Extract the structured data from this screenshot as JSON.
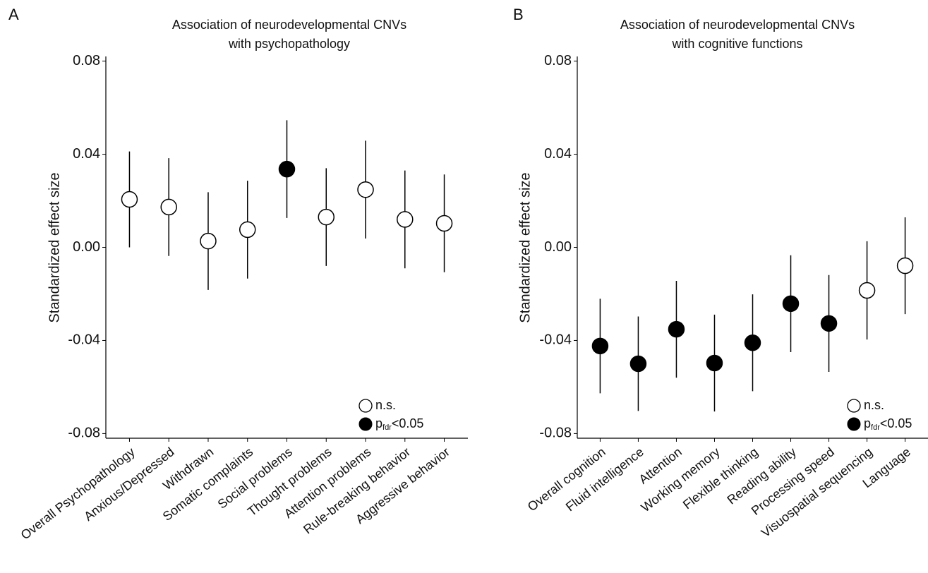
{
  "chart_data": [
    {
      "type": "errorbar",
      "panel": "A",
      "title": [
        "Association of neurodevelopmental CNVs",
        "with psychopathology"
      ],
      "y_label": "Standardized effect size",
      "categories": [
        "Overall Psychopathology",
        "Anxious/Depressed",
        "Withdrawn",
        "Somatic complaints",
        "Social problems",
        "Thought problems",
        "Attention problems",
        "Rule-breaking behavior",
        "Aggressive behavior"
      ],
      "values": [
        0.0206,
        0.0173,
        0.0027,
        0.0076,
        0.0336,
        0.013,
        0.0248,
        0.012,
        0.0103
      ],
      "errors": [
        0.0206,
        0.021,
        0.021,
        0.021,
        0.021,
        0.021,
        0.021,
        0.021,
        0.021
      ],
      "significant": [
        false,
        false,
        false,
        false,
        true,
        false,
        false,
        false,
        false
      ],
      "ylim": [
        -0.082,
        0.082
      ],
      "yticks": [
        -0.08,
        -0.04,
        {
          "value": 0,
          "label": "0.00"
        },
        0.04,
        0.08
      ],
      "legend": {
        "ns": "n.s.",
        "sig": [
          "p",
          "fdr",
          "<0.05"
        ]
      }
    },
    {
      "type": "errorbar",
      "panel": "B",
      "title": [
        "Association of neurodevelopmental CNVs",
        "with cognitive functions"
      ],
      "y_label": "Standardized effect size",
      "categories": [
        "Overall cognition",
        "Fluid intelligence",
        "Attention",
        "Working memory",
        "Flexible thinking",
        "Reading ability",
        "Processing speed",
        "Visuospatial sequencing",
        "Language"
      ],
      "values": [
        -0.0424,
        -0.05,
        -0.0352,
        -0.0497,
        -0.041,
        -0.0242,
        -0.0327,
        -0.0185,
        -0.0079
      ],
      "errors": [
        0.0203,
        0.0203,
        0.0208,
        0.0208,
        0.0208,
        0.0208,
        0.0208,
        0.0211,
        0.0208
      ],
      "significant": [
        true,
        true,
        true,
        true,
        true,
        true,
        true,
        false,
        false
      ],
      "ylim": [
        -0.082,
        0.082
      ],
      "yticks": [
        -0.08,
        -0.04,
        {
          "value": 0,
          "label": "0.00"
        },
        0.04,
        0.08
      ],
      "legend": {
        "ns": "n.s.",
        "sig": [
          "p",
          "fdr",
          "<0.05"
        ]
      }
    }
  ]
}
